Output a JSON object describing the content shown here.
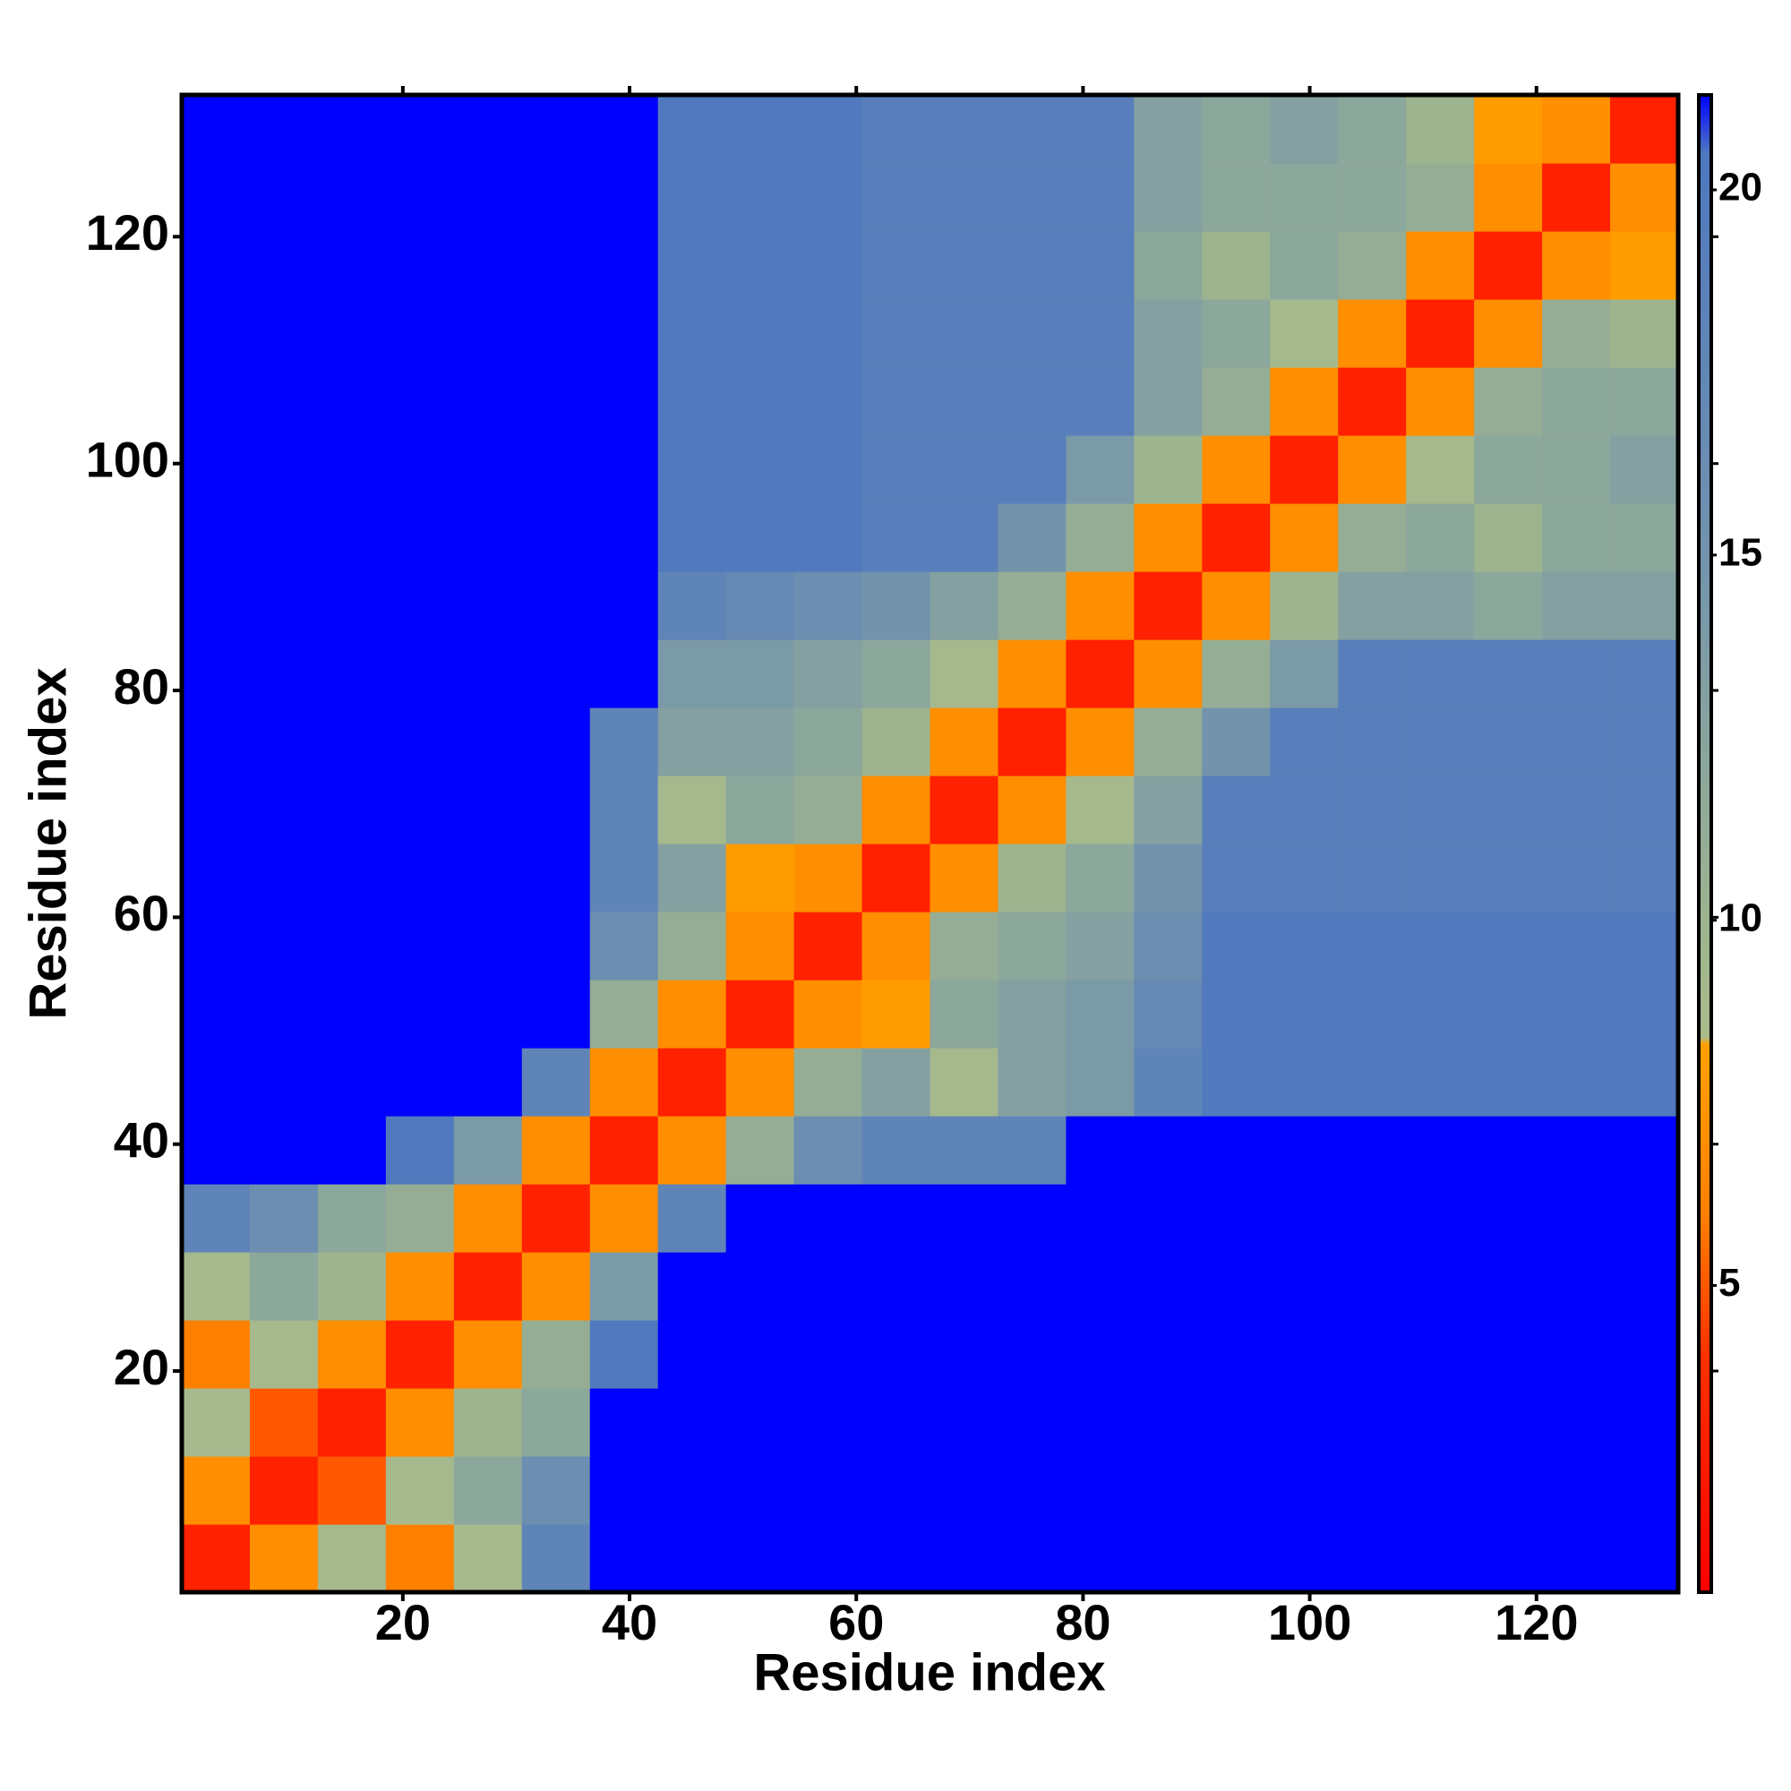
{
  "chart_data": {
    "type": "heatmap",
    "xlabel": "Residue index",
    "ylabel": "Residue index",
    "xlim": [
      0.5,
      132.5
    ],
    "ylim": [
      0.5,
      132.5
    ],
    "xticks": [
      20,
      40,
      60,
      80,
      100,
      120
    ],
    "yticks": [
      20,
      40,
      60,
      80,
      100,
      120
    ],
    "xbins": [
      0.5,
      6.5,
      12.5,
      18.5,
      24.5,
      30.5,
      36.5,
      42.5,
      48.5,
      54.5,
      60.5,
      66.5,
      72.5,
      78.5,
      84.5,
      90.5,
      96.5,
      102.5,
      108.5,
      114.5,
      120.5,
      126.5,
      132.5
    ],
    "ybins": [
      0.5,
      6.5,
      12.5,
      18.5,
      24.5,
      30.5,
      36.5,
      42.5,
      48.5,
      54.5,
      60.5,
      66.5,
      72.5,
      78.5,
      84.5,
      90.5,
      96.5,
      102.5,
      108.5,
      114.5,
      120.5,
      126.5,
      132.5
    ],
    "z": [
      [
        3,
        7,
        9,
        6,
        9,
        18,
        22,
        22,
        22,
        22,
        22,
        22,
        22,
        22,
        22,
        22,
        22,
        22,
        22,
        22,
        22,
        22
      ],
      [
        7,
        3,
        5,
        9,
        12,
        16,
        22,
        22,
        22,
        22,
        22,
        22,
        22,
        22,
        22,
        22,
        22,
        22,
        22,
        22,
        22,
        22
      ],
      [
        9,
        5,
        3,
        7,
        10,
        12,
        22,
        22,
        22,
        22,
        22,
        22,
        22,
        22,
        22,
        22,
        22,
        22,
        22,
        22,
        22,
        22
      ],
      [
        6,
        9,
        7,
        3,
        7,
        11,
        20,
        22,
        22,
        22,
        22,
        22,
        22,
        22,
        22,
        22,
        22,
        22,
        22,
        22,
        22,
        22
      ],
      [
        9,
        12,
        10,
        7,
        3,
        7,
        14,
        22,
        22,
        22,
        22,
        22,
        22,
        22,
        22,
        22,
        22,
        22,
        22,
        22,
        22,
        22
      ],
      [
        18,
        16,
        12,
        11,
        7,
        3,
        7,
        18,
        22,
        22,
        22,
        22,
        22,
        22,
        22,
        22,
        22,
        22,
        22,
        22,
        22,
        22
      ],
      [
        22,
        22,
        22,
        20,
        14,
        7,
        3,
        7,
        11,
        16,
        18,
        18,
        18,
        22,
        22,
        22,
        22,
        22,
        22,
        22,
        22,
        22
      ],
      [
        22,
        22,
        22,
        22,
        22,
        18,
        7,
        3,
        7,
        11,
        13,
        9,
        13,
        14,
        18,
        20,
        20,
        20,
        20,
        20,
        20,
        20
      ],
      [
        22,
        22,
        22,
        22,
        22,
        22,
        11,
        7,
        3,
        7,
        8,
        12,
        13,
        14,
        17,
        20,
        20,
        20,
        20,
        20,
        20,
        20
      ],
      [
        22,
        22,
        22,
        22,
        22,
        22,
        16,
        11,
        7,
        3,
        7,
        11,
        12,
        13,
        16,
        20,
        20,
        20,
        20,
        20,
        20,
        20
      ],
      [
        22,
        22,
        22,
        22,
        22,
        22,
        18,
        13,
        8,
        7,
        3,
        7,
        10,
        12,
        15,
        19,
        19,
        19,
        19,
        19,
        19,
        19
      ],
      [
        22,
        22,
        22,
        22,
        22,
        22,
        18,
        9,
        12,
        11,
        7,
        3,
        7,
        9,
        13,
        19,
        19,
        19,
        19,
        19,
        19,
        19
      ],
      [
        22,
        22,
        22,
        22,
        22,
        22,
        18,
        13,
        13,
        12,
        10,
        7,
        3,
        7,
        11,
        15,
        19,
        19,
        19,
        19,
        19,
        19
      ],
      [
        22,
        22,
        22,
        22,
        22,
        22,
        22,
        14,
        14,
        13,
        12,
        9,
        7,
        3,
        7,
        11,
        14,
        19,
        19,
        19,
        19,
        19
      ],
      [
        22,
        22,
        22,
        22,
        22,
        22,
        22,
        18,
        17,
        16,
        15,
        13,
        11,
        7,
        3,
        7,
        10,
        13,
        13,
        12,
        13,
        13
      ],
      [
        22,
        22,
        22,
        22,
        22,
        22,
        22,
        20,
        20,
        20,
        19,
        19,
        15,
        11,
        7,
        3,
        7,
        11,
        12,
        10,
        12,
        12
      ],
      [
        22,
        22,
        22,
        22,
        22,
        22,
        22,
        20,
        20,
        20,
        19,
        19,
        19,
        14,
        10,
        7,
        3,
        7,
        9,
        12,
        12,
        13
      ],
      [
        22,
        22,
        22,
        22,
        22,
        22,
        22,
        20,
        20,
        20,
        19,
        19,
        19,
        19,
        13,
        11,
        7,
        3,
        7,
        11,
        12,
        12
      ],
      [
        22,
        22,
        22,
        22,
        22,
        22,
        22,
        20,
        20,
        20,
        19,
        19,
        19,
        19,
        13,
        12,
        9,
        7,
        3,
        7,
        11,
        10
      ],
      [
        22,
        22,
        22,
        22,
        22,
        22,
        22,
        20,
        20,
        20,
        19,
        19,
        19,
        19,
        12,
        10,
        12,
        11,
        7,
        3,
        7,
        8
      ],
      [
        22,
        22,
        22,
        22,
        22,
        22,
        22,
        20,
        20,
        20,
        19,
        19,
        19,
        19,
        13,
        12,
        12,
        12,
        11,
        7,
        3,
        7
      ],
      [
        22,
        22,
        22,
        22,
        22,
        22,
        22,
        20,
        20,
        20,
        19,
        19,
        19,
        19,
        13,
        12,
        13,
        12,
        10,
        8,
        7,
        3
      ]
    ],
    "colorbar": {
      "zlim": [
        0.8,
        21.3
      ],
      "ticks": [
        5,
        10,
        15,
        20
      ],
      "stops": [
        [
          0.8,
          "#ff0000"
        ],
        [
          4,
          "#ff3000"
        ],
        [
          6,
          "#ff8000"
        ],
        [
          8.3,
          "#ffa000"
        ],
        [
          8.4,
          "#a9bc8c"
        ],
        [
          10,
          "#9db48f"
        ],
        [
          15,
          "#7393ad"
        ],
        [
          20.5,
          "#4e78c0"
        ],
        [
          21.3,
          "#0000ff"
        ]
      ]
    }
  }
}
